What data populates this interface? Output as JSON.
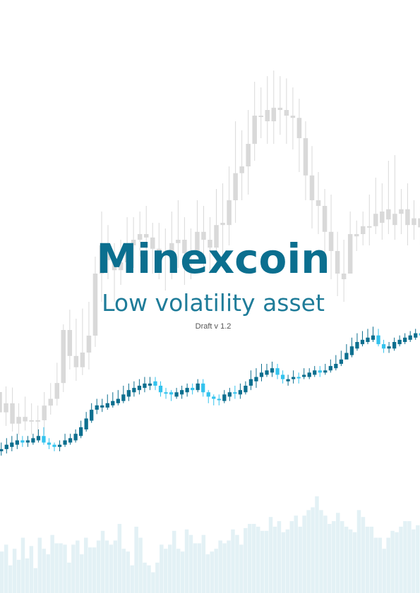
{
  "cover": {
    "title": "Minexcoin",
    "subtitle": "Low volatility asset",
    "version": "Draft v 1.2"
  },
  "colors": {
    "title": "#0b6f8f",
    "subtitle": "#1f7c99",
    "version": "#555555",
    "grey_candle": "#d9d9d9",
    "grey_wick": "#d9d9d9",
    "blue_up": "#33c3ee",
    "blue_down": "#0d6f8f",
    "volume": "#e3f1f5"
  },
  "chart_data": [
    {
      "type": "candlestick",
      "name": "",
      "role": "background-grey",
      "ohlc": [
        [
          22,
          40,
          60,
          12
        ],
        [
          30,
          22,
          45,
          10
        ],
        [
          12,
          30,
          44,
          5
        ],
        [
          18,
          12,
          30,
          2
        ],
        [
          14,
          18,
          36,
          6
        ],
        [
          14,
          15,
          30,
          2
        ],
        [
          15,
          15,
          28,
          0
        ],
        [
          28,
          15,
          40,
          2
        ],
        [
          34,
          28,
          48,
          20
        ],
        [
          48,
          34,
          66,
          28
        ],
        [
          95,
          48,
          100,
          40
        ],
        [
          72,
          95,
          113,
          60
        ],
        [
          62,
          72,
          105,
          50
        ],
        [
          75,
          62,
          114,
          55
        ],
        [
          90,
          75,
          120,
          60
        ],
        [
          145,
          90,
          160,
          80
        ],
        [
          170,
          145,
          200,
          120
        ],
        [
          157,
          170,
          188,
          140
        ],
        [
          148,
          157,
          172,
          120
        ],
        [
          155,
          148,
          175,
          135
        ],
        [
          170,
          155,
          195,
          150
        ],
        [
          175,
          170,
          195,
          150
        ],
        [
          180,
          175,
          200,
          160
        ],
        [
          177,
          180,
          205,
          155
        ],
        [
          167,
          177,
          190,
          145
        ],
        [
          165,
          167,
          190,
          140
        ],
        [
          162,
          165,
          185,
          130
        ],
        [
          172,
          162,
          200,
          140
        ],
        [
          175,
          172,
          210,
          150
        ],
        [
          163,
          175,
          195,
          135
        ],
        [
          162,
          163,
          185,
          140
        ],
        [
          182,
          162,
          210,
          160
        ],
        [
          175,
          182,
          205,
          150
        ],
        [
          168,
          175,
          195,
          145
        ],
        [
          188,
          168,
          220,
          155
        ],
        [
          190,
          188,
          225,
          160
        ],
        [
          210,
          188,
          240,
          170
        ],
        [
          234,
          210,
          280,
          190
        ],
        [
          240,
          234,
          272,
          210
        ],
        [
          260,
          240,
          290,
          215
        ],
        [
          285,
          260,
          315,
          245
        ],
        [
          285,
          285,
          310,
          265
        ],
        [
          280,
          290,
          320,
          260
        ],
        [
          292,
          280,
          325,
          260
        ],
        [
          290,
          292,
          320,
          268
        ],
        [
          285,
          290,
          318,
          260
        ],
        [
          283,
          285,
          310,
          255
        ],
        [
          265,
          283,
          300,
          235
        ],
        [
          232,
          265,
          280,
          210
        ],
        [
          210,
          232,
          258,
          185
        ],
        [
          205,
          210,
          235,
          180
        ],
        [
          182,
          205,
          220,
          160
        ],
        [
          165,
          182,
          215,
          140
        ],
        [
          145,
          165,
          182,
          125
        ],
        [
          140,
          145,
          175,
          120
        ],
        [
          180,
          145,
          200,
          155
        ],
        [
          178,
          180,
          192,
          165
        ],
        [
          187,
          180,
          200,
          170
        ],
        [
          187,
          187,
          215,
          170
        ],
        [
          198,
          187,
          230,
          180
        ],
        [
          200,
          190,
          225,
          175
        ],
        [
          202,
          193,
          245,
          180
        ],
        [
          198,
          188,
          250,
          175
        ],
        [
          202,
          198,
          220,
          180
        ],
        [
          188,
          202,
          225,
          170
        ],
        [
          194,
          188,
          210,
          175
        ],
        [
          186,
          194,
          205,
          170
        ]
      ]
    },
    {
      "type": "candlestick",
      "name": "",
      "role": "foreground-blue",
      "ohlc": [
        [
          101,
          100,
          104,
          98
        ],
        [
          103,
          101,
          106,
          99
        ],
        [
          104,
          102,
          107,
          100
        ],
        [
          105,
          103,
          108,
          101
        ],
        [
          104,
          105,
          107,
          102
        ],
        [
          105,
          104,
          107,
          102
        ],
        [
          106,
          104,
          108,
          103
        ],
        [
          107,
          105,
          110,
          104
        ],
        [
          104,
          107,
          111,
          103
        ],
        [
          103,
          104,
          106,
          101
        ],
        [
          102,
          103,
          104,
          100
        ],
        [
          103,
          102,
          105,
          100
        ],
        [
          105,
          103,
          108,
          102
        ],
        [
          106,
          104,
          108,
          103
        ],
        [
          108,
          105,
          110,
          104
        ],
        [
          111,
          107,
          114,
          106
        ],
        [
          115,
          110,
          118,
          109
        ],
        [
          119,
          114,
          122,
          113
        ],
        [
          121,
          119,
          124,
          117
        ],
        [
          121,
          120,
          124,
          118
        ],
        [
          122,
          120,
          126,
          119
        ],
        [
          123,
          121,
          127,
          120
        ],
        [
          124,
          122,
          128,
          121
        ],
        [
          126,
          123,
          130,
          122
        ],
        [
          128,
          125,
          131,
          123
        ],
        [
          129,
          127,
          132,
          125
        ],
        [
          130,
          128,
          133,
          126
        ],
        [
          131,
          129,
          134,
          127
        ],
        [
          131,
          130,
          134,
          128
        ],
        [
          130,
          132,
          134,
          128
        ],
        [
          127,
          130,
          132,
          125
        ],
        [
          127,
          127,
          129,
          124
        ],
        [
          126,
          127,
          128,
          123
        ],
        [
          127,
          125,
          129,
          124
        ],
        [
          128,
          126,
          130,
          124
        ],
        [
          129,
          127,
          131,
          125
        ],
        [
          128,
          129,
          131,
          126
        ],
        [
          131,
          128,
          133,
          127
        ],
        [
          127,
          131,
          133,
          125
        ],
        [
          125,
          127,
          128,
          122
        ],
        [
          124,
          125,
          126,
          121
        ],
        [
          124,
          124,
          126,
          121
        ],
        [
          126,
          123,
          128,
          122
        ],
        [
          127,
          125,
          129,
          123
        ],
        [
          127,
          127,
          130,
          124
        ],
        [
          128,
          126,
          131,
          124
        ],
        [
          130,
          127,
          132,
          126
        ],
        [
          133,
          130,
          137,
          128
        ],
        [
          134,
          132,
          138,
          129
        ],
        [
          136,
          134,
          140,
          132
        ],
        [
          137,
          135,
          140,
          134
        ],
        [
          138,
          136,
          141,
          134
        ],
        [
          135,
          138,
          140,
          133
        ],
        [
          133,
          135,
          137,
          131
        ],
        [
          133,
          132,
          135,
          130
        ],
        [
          134,
          133,
          137,
          131
        ],
        [
          134,
          134,
          136,
          131
        ],
        [
          135,
          134,
          138,
          133
        ],
        [
          136,
          134,
          138,
          133
        ],
        [
          137,
          135,
          139,
          134
        ],
        [
          136,
          137,
          139,
          134
        ],
        [
          137,
          136,
          140,
          135
        ],
        [
          139,
          137,
          142,
          136
        ],
        [
          140,
          138,
          144,
          137
        ],
        [
          142,
          140,
          146,
          139
        ],
        [
          145,
          142,
          149,
          143
        ],
        [
          148,
          144,
          152,
          143
        ],
        [
          150,
          147,
          154,
          146
        ],
        [
          151,
          149,
          155,
          148
        ],
        [
          152,
          150,
          156,
          149
        ],
        [
          153,
          151,
          157,
          150
        ],
        [
          149,
          153,
          156,
          148
        ],
        [
          147,
          149,
          151,
          145
        ],
        [
          148,
          147,
          150,
          145
        ],
        [
          150,
          147,
          152,
          146
        ],
        [
          151,
          149,
          153,
          148
        ],
        [
          152,
          150,
          154,
          149
        ],
        [
          153,
          151,
          155,
          150
        ],
        [
          154,
          152,
          156,
          151
        ],
        [
          153,
          154,
          156,
          151
        ]
      ]
    },
    {
      "type": "bar",
      "name": "",
      "role": "volume",
      "values": [
        30,
        35,
        20,
        32,
        24,
        40,
        25,
        34,
        18,
        40,
        32,
        28,
        42,
        36,
        36,
        35,
        22,
        35,
        38,
        28,
        40,
        33,
        33,
        38,
        45,
        38,
        35,
        38,
        50,
        32,
        30,
        20,
        48,
        40,
        22,
        20,
        15,
        22,
        35,
        32,
        35,
        45,
        32,
        30,
        46,
        42,
        36,
        36,
        42,
        28,
        30,
        32,
        38,
        36,
        38,
        46,
        42,
        35,
        47,
        50,
        50,
        48,
        45,
        45,
        55,
        48,
        52,
        44,
        46,
        52,
        56,
        48,
        56,
        60,
        62,
        70,
        60,
        56,
        50,
        52,
        58,
        52,
        48,
        46,
        44,
        60,
        55,
        48,
        48,
        40,
        40,
        32,
        40,
        45,
        44,
        48,
        52,
        52,
        46,
        49
      ]
    }
  ]
}
